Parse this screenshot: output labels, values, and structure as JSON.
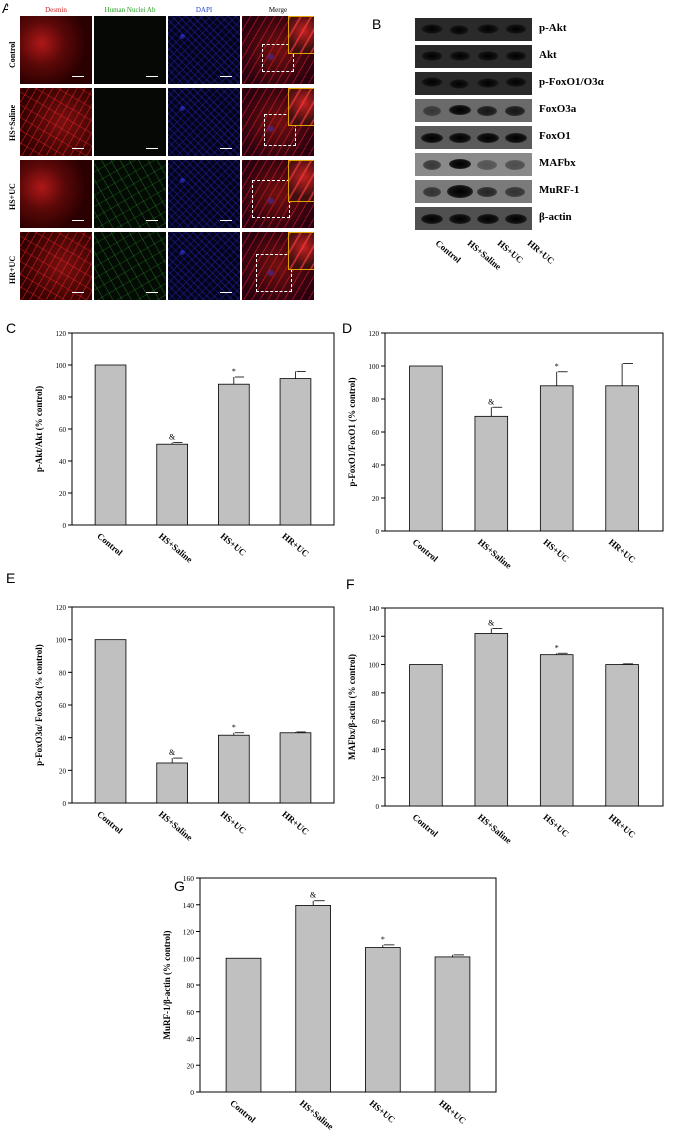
{
  "panels": {
    "a": "A",
    "b": "B",
    "c": "C",
    "d": "D",
    "e": "E",
    "f": "F",
    "g": "G"
  },
  "micrograph": {
    "columns": [
      {
        "label": "Desmin",
        "color": "#d02020"
      },
      {
        "label": "Human Nuclei Ab",
        "color": "#20a020"
      },
      {
        "label": "DAPI",
        "color": "#2040d0"
      },
      {
        "label": "Merge",
        "color": "#000000"
      }
    ],
    "rows": [
      "Control",
      "HS+Saline",
      "HS+UC",
      "HR+UC"
    ]
  },
  "blot": {
    "proteins": [
      "p-Akt",
      "Akt",
      "p-FoxO1/O3α",
      "FoxO3a",
      "FoxO1",
      "MAFbx",
      "MuRF-1",
      "β-actin"
    ],
    "lanes": [
      "Control",
      "HS+Saline",
      "HS+UC",
      "HR+UC"
    ]
  },
  "chart_data": [
    {
      "id": "C",
      "type": "bar",
      "categories": [
        "Control",
        "HS+Saline",
        "HS+UC",
        "HR+UC"
      ],
      "values": [
        100,
        50.5,
        88,
        91.5
      ],
      "errors": [
        0,
        1,
        4.5,
        4.5
      ],
      "markers": [
        "",
        "&",
        "*",
        ""
      ],
      "ylabel": "p-Akt/Akt (% control)",
      "ylim": [
        0,
        120
      ],
      "yticks": [
        0,
        20,
        40,
        60,
        80,
        100,
        120
      ]
    },
    {
      "id": "D",
      "type": "bar",
      "categories": [
        "Control",
        "HS+Saline",
        "HS+UC",
        "HR+UC"
      ],
      "values": [
        100,
        69.5,
        88,
        88
      ],
      "errors": [
        0,
        5.5,
        8.5,
        13.5
      ],
      "markers": [
        "",
        "&",
        "*",
        ""
      ],
      "ylabel": "p-FoxO1/FoxO1 (% control)",
      "ylim": [
        0,
        120
      ],
      "yticks": [
        0,
        20,
        40,
        60,
        80,
        100,
        120
      ]
    },
    {
      "id": "E",
      "type": "bar",
      "categories": [
        "Control",
        "HS+Saline",
        "HS+UC",
        "HR+UC"
      ],
      "values": [
        100,
        24.5,
        41.5,
        43
      ],
      "errors": [
        0,
        3,
        1.5,
        0.5
      ],
      "markers": [
        "",
        "&",
        "*",
        ""
      ],
      "ylabel": "p-FoxO3α/ FoxO3α (% control)",
      "ylim": [
        0,
        120
      ],
      "yticks": [
        0,
        20,
        40,
        60,
        80,
        100,
        120
      ]
    },
    {
      "id": "F",
      "type": "bar",
      "categories": [
        "Control",
        "HS+Saline",
        "HS+UC",
        "HR+UC"
      ],
      "values": [
        100,
        122,
        107,
        100
      ],
      "errors": [
        0,
        3.5,
        1,
        0.5
      ],
      "markers": [
        "",
        "&",
        "*",
        ""
      ],
      "ylabel": "MAFbx/β-actin (% control)",
      "ylim": [
        0,
        140
      ],
      "yticks": [
        0,
        20,
        40,
        60,
        80,
        100,
        120,
        140
      ]
    },
    {
      "id": "G",
      "type": "bar",
      "categories": [
        "Control",
        "HS+Saline",
        "HS+UC",
        "HR+UC"
      ],
      "values": [
        100,
        139.5,
        108,
        101
      ],
      "errors": [
        0,
        3.5,
        2,
        1.5
      ],
      "markers": [
        "",
        "&",
        "*",
        ""
      ],
      "ylabel": "MuRF-1/β-actin (% control)",
      "ylim": [
        0,
        160
      ],
      "yticks": [
        0,
        20,
        40,
        60,
        80,
        100,
        120,
        140,
        160
      ]
    }
  ]
}
